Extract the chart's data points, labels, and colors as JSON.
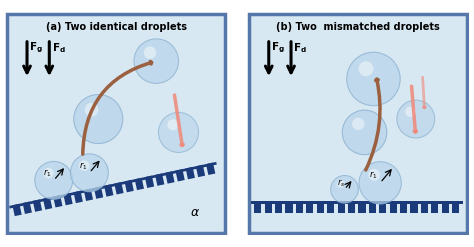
{
  "bg_color": "#d8e8f2",
  "border_color": "#5577aa",
  "panel_a_title": "(a) Two identical droplets",
  "panel_b_title": "(b) Two  mismatched droplets",
  "droplet_face_color": "#b8d4ea",
  "droplet_edge_color": "#8ab0d0",
  "droplet_alpha": 0.72,
  "surface_color": "#1a3a7a",
  "arrow_color_dark": "#9b6040",
  "arrow_color_light": "#f08878",
  "force_arrow_color": "#000000"
}
